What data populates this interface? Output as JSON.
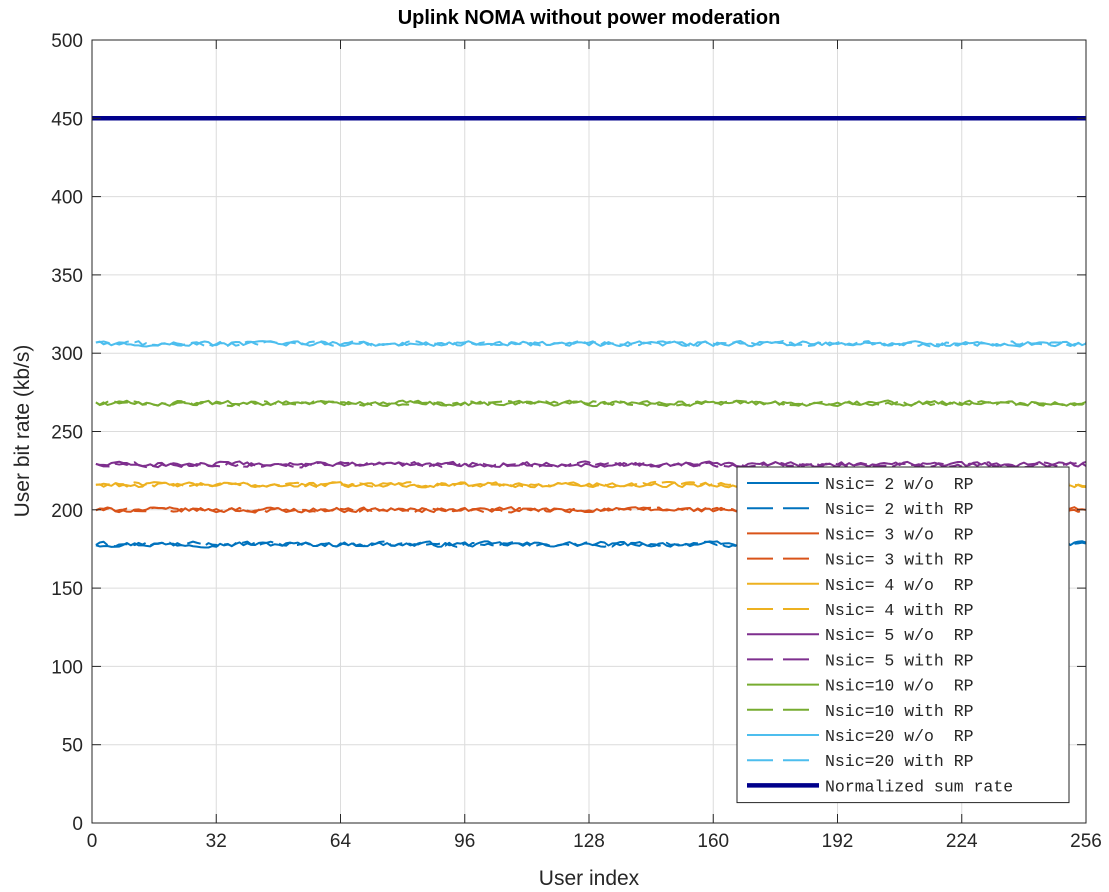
{
  "chart_data": {
    "type": "line",
    "title": "Uplink NOMA without power moderation",
    "xlabel": "User index",
    "ylabel": "User bit rate (kb/s)",
    "xlim": [
      0,
      256
    ],
    "ylim": [
      0,
      500
    ],
    "xticks": [
      0,
      32,
      64,
      96,
      128,
      160,
      192,
      224,
      256
    ],
    "yticks": [
      0,
      50,
      100,
      150,
      200,
      250,
      300,
      350,
      400,
      450,
      500
    ],
    "grid": true,
    "legend_position": "bottom-right",
    "series": [
      {
        "name": "Nsic= 2 w/o  RP",
        "color": "#0072BD",
        "dash": "solid",
        "mean": 178,
        "values": [
          178
        ]
      },
      {
        "name": "Nsic= 2 with RP",
        "color": "#0072BD",
        "dash": "dashed",
        "mean": 178,
        "values": [
          178
        ]
      },
      {
        "name": "Nsic= 3 w/o  RP",
        "color": "#D95319",
        "dash": "solid",
        "mean": 200,
        "values": [
          200
        ]
      },
      {
        "name": "Nsic= 3 with RP",
        "color": "#D95319",
        "dash": "dashed",
        "mean": 200,
        "values": [
          200
        ]
      },
      {
        "name": "Nsic= 4 w/o  RP",
        "color": "#EDB120",
        "dash": "solid",
        "mean": 216,
        "values": [
          216
        ]
      },
      {
        "name": "Nsic= 4 with RP",
        "color": "#EDB120",
        "dash": "dashed",
        "mean": 216,
        "values": [
          216
        ]
      },
      {
        "name": "Nsic= 5 w/o  RP",
        "color": "#7E2F8E",
        "dash": "solid",
        "mean": 229,
        "values": [
          229
        ]
      },
      {
        "name": "Nsic= 5 with RP",
        "color": "#7E2F8E",
        "dash": "dashed",
        "mean": 229,
        "values": [
          229
        ]
      },
      {
        "name": "Nsic=10 w/o  RP",
        "color": "#77AC30",
        "dash": "solid",
        "mean": 268,
        "values": [
          268
        ]
      },
      {
        "name": "Nsic=10 with RP",
        "color": "#77AC30",
        "dash": "dashed",
        "mean": 268,
        "values": [
          268
        ]
      },
      {
        "name": "Nsic=20 w/o  RP",
        "color": "#4DBEEE",
        "dash": "solid",
        "mean": 306,
        "values": [
          306
        ]
      },
      {
        "name": "Nsic=20 with RP",
        "color": "#4DBEEE",
        "dash": "dashed",
        "mean": 306,
        "values": [
          306
        ]
      },
      {
        "name": "Normalized sum rate",
        "color": "#00008B",
        "dash": "solid",
        "mean": 450,
        "values": [
          450
        ],
        "bold": true
      }
    ]
  }
}
